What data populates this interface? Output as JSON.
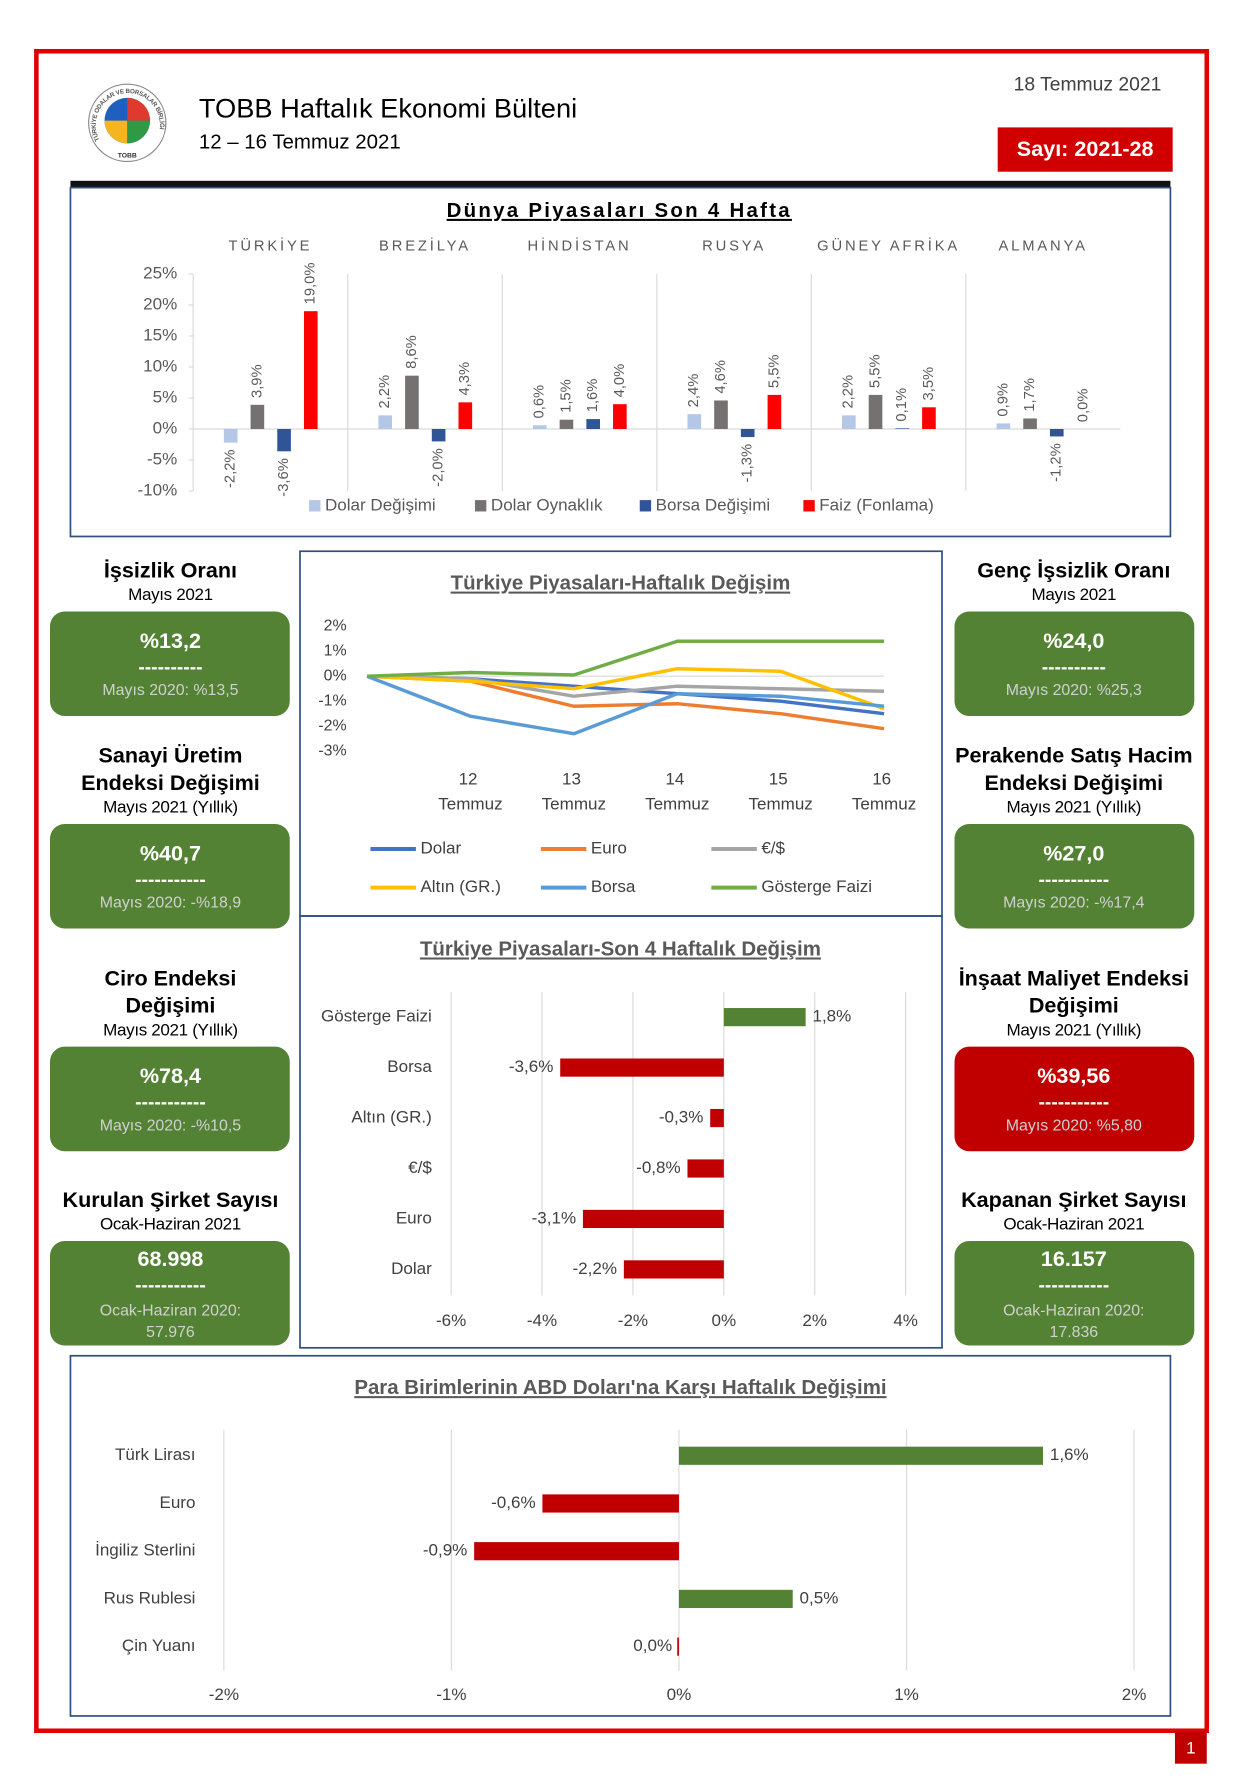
{
  "header": {
    "title": "TOBB Haftalık Ekonomi Bülteni",
    "period": "12 – 16 Temmuz 2021",
    "date": "18 Temmuz 2021",
    "issue": "Sayı: 2021-28",
    "page": "1"
  },
  "logo": {
    "ring_text": "TÜRKİYE ODALAR VE BORSALAR BİRLİĞİ",
    "label": "TOBB"
  },
  "world_chart": {
    "type": "bar",
    "title": "Dünya Piyasaları Son 4 Hafta",
    "categories": [
      "TÜRKİYE",
      "BREZİLYA",
      "HİNDİSTAN",
      "RUSYA",
      "GÜNEY AFRİKA",
      "ALMANYA"
    ],
    "series": [
      {
        "name": "Dolar Değişimi",
        "color": "#b4c7e7",
        "values": [
          -2.2,
          2.2,
          0.6,
          2.4,
          2.2,
          0.9
        ],
        "value_labels": [
          "-2,2%",
          "2,2%",
          "0,6%",
          "2,4%",
          "2,2%",
          "0,9%"
        ]
      },
      {
        "name": "Dolar Oynaklık",
        "color": "#767171",
        "values": [
          3.9,
          8.6,
          1.5,
          4.6,
          5.5,
          1.7
        ],
        "value_labels": [
          "3,9%",
          "8,6%",
          "1,5%",
          "4,6%",
          "5,5%",
          "1,7%"
        ]
      },
      {
        "name": "Borsa Değişimi",
        "color": "#2f5597",
        "values": [
          -3.6,
          -2.0,
          1.6,
          -1.3,
          0.1,
          -1.2
        ],
        "value_labels": [
          "-3,6%",
          "-2,0%",
          "1,6%",
          "-1,3%",
          "0,1%",
          "-1,2%"
        ]
      },
      {
        "name": "Faiz (Fonlama)",
        "color": "#ff0000",
        "values": [
          19.0,
          4.3,
          4.0,
          5.5,
          3.5,
          0.0
        ],
        "value_labels": [
          "19,0%",
          "4,3%",
          "4,0%",
          "5,5%",
          "3,5%",
          "0,0%"
        ]
      }
    ],
    "ylim": [
      -10,
      25
    ],
    "yticks": [
      {
        "value": -10,
        "label": "-10%"
      },
      {
        "value": -5,
        "label": "-5%"
      },
      {
        "value": 0,
        "label": "0%"
      },
      {
        "value": 5,
        "label": "5%"
      },
      {
        "value": 10,
        "label": "10%"
      },
      {
        "value": 15,
        "label": "15%"
      },
      {
        "value": 20,
        "label": "20%"
      },
      {
        "value": 25,
        "label": "25%"
      }
    ]
  },
  "line_chart": {
    "type": "line",
    "title": "Türkiye Piyasaları-Haftalık Değişim",
    "categories": [
      null,
      "12 Temmuz",
      "13 Temmuz",
      "14 Temmuz",
      "15 Temmuz",
      "16 Temmuz"
    ],
    "series": [
      {
        "name": "Dolar",
        "color": "#4472c4",
        "values": [
          0,
          -0.1,
          -0.4,
          -0.7,
          -1.0,
          -1.5
        ]
      },
      {
        "name": "Euro",
        "color": "#ed7d31",
        "values": [
          0,
          -0.2,
          -1.2,
          -1.1,
          -1.5,
          -2.1
        ]
      },
      {
        "name": "€/$",
        "color": "#a5a5a5",
        "values": [
          0,
          -0.1,
          -0.8,
          -0.4,
          -0.5,
          -0.6
        ]
      },
      {
        "name": "Altın (GR.)",
        "color": "#ffc000",
        "values": [
          0,
          -0.2,
          -0.5,
          0.3,
          0.2,
          -1.3
        ]
      },
      {
        "name": "Borsa",
        "color": "#5b9bd5",
        "values": [
          0,
          -1.6,
          -2.3,
          -0.7,
          -0.8,
          -1.2
        ]
      },
      {
        "name": "Gösterge Faizi",
        "color": "#70ad47",
        "values": [
          0,
          0.15,
          0.05,
          1.4,
          1.4,
          1.4
        ]
      }
    ],
    "ylim": [
      -3,
      2
    ],
    "yticks": [
      {
        "value": 2,
        "label": "2%"
      },
      {
        "value": 1,
        "label": "1%"
      },
      {
        "value": 0,
        "label": "0%"
      },
      {
        "value": -1,
        "label": "-1%"
      },
      {
        "value": -2,
        "label": "-2%"
      },
      {
        "value": -3,
        "label": "-3%"
      }
    ],
    "grid": false
  },
  "four_week_chart": {
    "type": "hbar",
    "title": "Türkiye Piyasaları-Son 4 Haftalık Değişim",
    "categories": [
      "Gösterge Faizi",
      "Borsa",
      "Altın (GR.)",
      "€/$",
      "Euro",
      "Dolar"
    ],
    "values": [
      1.8,
      -3.6,
      -0.3,
      -0.8,
      -3.1,
      -2.2
    ],
    "value_labels": [
      "1,8%",
      "-3,6%",
      "-0,3%",
      "-0,8%",
      "-3,1%",
      "-2,2%"
    ],
    "positive_color": "#548235",
    "negative_color": "#c00000",
    "xlim": [
      -6,
      4
    ],
    "xticks": [
      {
        "value": -6,
        "label": "-6%"
      },
      {
        "value": -4,
        "label": "-4%"
      },
      {
        "value": -2,
        "label": "-2%"
      },
      {
        "value": 0,
        "label": "0%"
      },
      {
        "value": 2,
        "label": "2%"
      },
      {
        "value": 4,
        "label": "4%"
      }
    ],
    "grid": true
  },
  "currency_chart": {
    "type": "hbar",
    "title": "Para Birimlerinin ABD Doları'na Karşı Haftalık Değişimi",
    "categories": [
      "Türk Lirası",
      "Euro",
      "İngiliz Sterlini",
      "Rus Rublesi",
      "Çin Yuanı"
    ],
    "values": [
      1.6,
      -0.6,
      -0.9,
      0.5,
      0.0
    ],
    "value_labels": [
      "1,6%",
      "-0,6%",
      "-0,9%",
      "0,5%",
      "0,0%"
    ],
    "positive_color": "#548235",
    "negative_color": "#c00000",
    "xlim": [
      -2,
      2
    ],
    "xticks": [
      {
        "value": -2,
        "label": "-2%"
      },
      {
        "value": -1,
        "label": "-1%"
      },
      {
        "value": 0,
        "label": "0%"
      },
      {
        "value": 1,
        "label": "1%"
      },
      {
        "value": 2,
        "label": "2%"
      }
    ],
    "grid": true
  },
  "indicators": {
    "left": [
      {
        "title": [
          "İşsizlik Oranı"
        ],
        "period": "Mayıs 2021",
        "value": "%13,2",
        "divider": "----------",
        "compare": [
          "Mayıs 2020: %13,5"
        ],
        "color": "#548235"
      },
      {
        "title": [
          "Sanayi Üretim",
          "Endeksi Değişimi"
        ],
        "period": "Mayıs 2021 (Yıllık)",
        "value": "%40,7",
        "divider": "-----------",
        "compare": [
          "Mayıs 2020: -%18,9"
        ],
        "color": "#548235"
      },
      {
        "title": [
          "Ciro Endeksi",
          "Değişimi"
        ],
        "period": "Mayıs 2021 (Yıllık)",
        "value": "%78,4",
        "divider": "-----------",
        "compare": [
          "Mayıs 2020: -%10,5"
        ],
        "color": "#548235"
      },
      {
        "title": [
          "Kurulan Şirket Sayısı"
        ],
        "period": "Ocak-Haziran 2021",
        "value": "68.998",
        "divider": "-----------",
        "compare": [
          "Ocak-Haziran 2020:",
          "57.976"
        ],
        "color": "#548235"
      }
    ],
    "right": [
      {
        "title": [
          "Genç İşsizlik Oranı"
        ],
        "period": "Mayıs 2021",
        "value": "%24,0",
        "divider": "----------",
        "compare": [
          "Mayıs 2020: %25,3"
        ],
        "color": "#548235"
      },
      {
        "title": [
          "Perakende Satış Hacim",
          "Endeksi Değişimi"
        ],
        "period": "Mayıs 2021 (Yıllık)",
        "value": "%27,0",
        "divider": "-----------",
        "compare": [
          "Mayıs 2020: -%17,4"
        ],
        "color": "#548235"
      },
      {
        "title": [
          "İnşaat Maliyet Endeksi",
          "Değişimi"
        ],
        "period": "Mayıs 2021 (Yıllık)",
        "value": "%39,56",
        "divider": "-----------",
        "compare": [
          "Mayıs 2020: %5,80"
        ],
        "color": "#c00000"
      },
      {
        "title": [
          "Kapanan Şirket Sayısı"
        ],
        "period": "Ocak-Haziran 2021",
        "value": "16.157",
        "divider": "-----------",
        "compare": [
          "Ocak-Haziran 2020:",
          "17.836"
        ],
        "color": "#548235"
      }
    ]
  }
}
